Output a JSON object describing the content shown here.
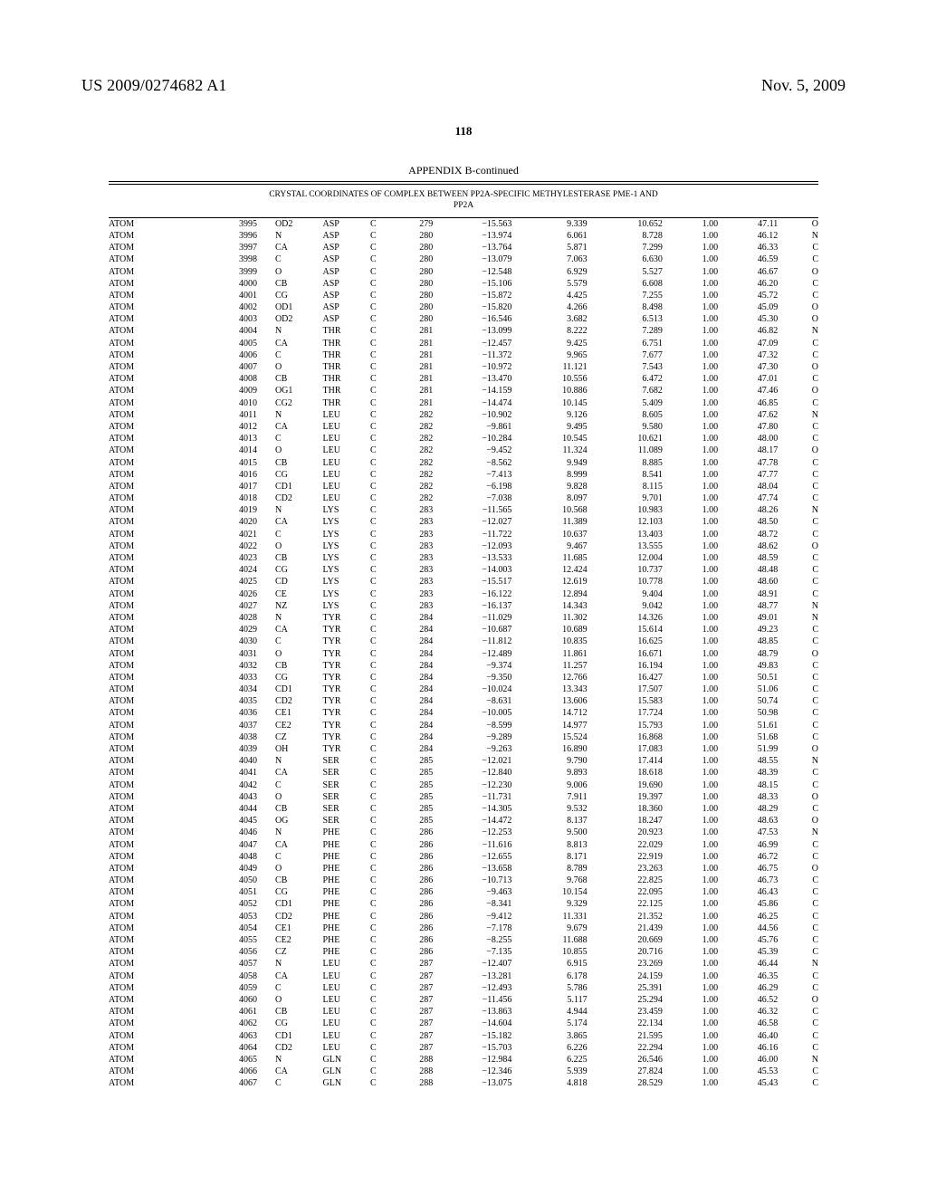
{
  "header": {
    "publication_number": "US 2009/0274682 A1",
    "publication_date": "Nov. 5, 2009"
  },
  "page_number": "118",
  "appendix_title": "APPENDIX B-continued",
  "subtitle_line1": "CRYSTAL COORDINATES OF COMPLEX BETWEEN PP2A-SPECIFIC METHYLESTERASE PME-1 AND",
  "subtitle_line2": "PP2A",
  "columns": [
    "rec",
    "ser",
    "atom",
    "res",
    "chain",
    "seq",
    "x",
    "y",
    "z",
    "occ",
    "b",
    "el"
  ],
  "rows": [
    [
      "ATOM",
      "3995",
      "OD2",
      "ASP",
      "C",
      "279",
      "−15.563",
      "9.339",
      "10.652",
      "1.00",
      "47.11",
      "O"
    ],
    [
      "ATOM",
      "3996",
      "N",
      "ASP",
      "C",
      "280",
      "−13.974",
      "6.061",
      "8.728",
      "1.00",
      "46.12",
      "N"
    ],
    [
      "ATOM",
      "3997",
      "CA",
      "ASP",
      "C",
      "280",
      "−13.764",
      "5.871",
      "7.299",
      "1.00",
      "46.33",
      "C"
    ],
    [
      "ATOM",
      "3998",
      "C",
      "ASP",
      "C",
      "280",
      "−13.079",
      "7.063",
      "6.630",
      "1.00",
      "46.59",
      "C"
    ],
    [
      "ATOM",
      "3999",
      "O",
      "ASP",
      "C",
      "280",
      "−12.548",
      "6.929",
      "5.527",
      "1.00",
      "46.67",
      "O"
    ],
    [
      "ATOM",
      "4000",
      "CB",
      "ASP",
      "C",
      "280",
      "−15.106",
      "5.579",
      "6.608",
      "1.00",
      "46.20",
      "C"
    ],
    [
      "ATOM",
      "4001",
      "CG",
      "ASP",
      "C",
      "280",
      "−15.872",
      "4.425",
      "7.255",
      "1.00",
      "45.72",
      "C"
    ],
    [
      "ATOM",
      "4002",
      "OD1",
      "ASP",
      "C",
      "280",
      "−15.820",
      "4.266",
      "8.498",
      "1.00",
      "45.09",
      "O"
    ],
    [
      "ATOM",
      "4003",
      "OD2",
      "ASP",
      "C",
      "280",
      "−16.546",
      "3.682",
      "6.513",
      "1.00",
      "45.30",
      "O"
    ],
    [
      "ATOM",
      "4004",
      "N",
      "THR",
      "C",
      "281",
      "−13.099",
      "8.222",
      "7.289",
      "1.00",
      "46.82",
      "N"
    ],
    [
      "ATOM",
      "4005",
      "CA",
      "THR",
      "C",
      "281",
      "−12.457",
      "9.425",
      "6.751",
      "1.00",
      "47.09",
      "C"
    ],
    [
      "ATOM",
      "4006",
      "C",
      "THR",
      "C",
      "281",
      "−11.372",
      "9.965",
      "7.677",
      "1.00",
      "47.32",
      "C"
    ],
    [
      "ATOM",
      "4007",
      "O",
      "THR",
      "C",
      "281",
      "−10.972",
      "11.121",
      "7.543",
      "1.00",
      "47.30",
      "O"
    ],
    [
      "ATOM",
      "4008",
      "CB",
      "THR",
      "C",
      "281",
      "−13.470",
      "10.556",
      "6.472",
      "1.00",
      "47.01",
      "C"
    ],
    [
      "ATOM",
      "4009",
      "OG1",
      "THR",
      "C",
      "281",
      "−14.159",
      "10.886",
      "7.682",
      "1.00",
      "47.46",
      "O"
    ],
    [
      "ATOM",
      "4010",
      "CG2",
      "THR",
      "C",
      "281",
      "−14.474",
      "10.145",
      "5.409",
      "1.00",
      "46.85",
      "C"
    ],
    [
      "ATOM",
      "4011",
      "N",
      "LEU",
      "C",
      "282",
      "−10.902",
      "9.126",
      "8.605",
      "1.00",
      "47.62",
      "N"
    ],
    [
      "ATOM",
      "4012",
      "CA",
      "LEU",
      "C",
      "282",
      "−9.861",
      "9.495",
      "9.580",
      "1.00",
      "47.80",
      "C"
    ],
    [
      "ATOM",
      "4013",
      "C",
      "LEU",
      "C",
      "282",
      "−10.284",
      "10.545",
      "10.621",
      "1.00",
      "48.00",
      "C"
    ],
    [
      "ATOM",
      "4014",
      "O",
      "LEU",
      "C",
      "282",
      "−9.452",
      "11.324",
      "11.089",
      "1.00",
      "48.17",
      "O"
    ],
    [
      "ATOM",
      "4015",
      "CB",
      "LEU",
      "C",
      "282",
      "−8.562",
      "9.949",
      "8.885",
      "1.00",
      "47.78",
      "C"
    ],
    [
      "ATOM",
      "4016",
      "CG",
      "LEU",
      "C",
      "282",
      "−7.413",
      "8.999",
      "8.541",
      "1.00",
      "47.77",
      "C"
    ],
    [
      "ATOM",
      "4017",
      "CD1",
      "LEU",
      "C",
      "282",
      "−6.198",
      "9.828",
      "8.115",
      "1.00",
      "48.04",
      "C"
    ],
    [
      "ATOM",
      "4018",
      "CD2",
      "LEU",
      "C",
      "282",
      "−7.038",
      "8.097",
      "9.701",
      "1.00",
      "47.74",
      "C"
    ],
    [
      "ATOM",
      "4019",
      "N",
      "LYS",
      "C",
      "283",
      "−11.565",
      "10.568",
      "10.983",
      "1.00",
      "48.26",
      "N"
    ],
    [
      "ATOM",
      "4020",
      "CA",
      "LYS",
      "C",
      "283",
      "−12.027",
      "11.389",
      "12.103",
      "1.00",
      "48.50",
      "C"
    ],
    [
      "ATOM",
      "4021",
      "C",
      "LYS",
      "C",
      "283",
      "−11.722",
      "10.637",
      "13.403",
      "1.00",
      "48.72",
      "C"
    ],
    [
      "ATOM",
      "4022",
      "O",
      "LYS",
      "C",
      "283",
      "−12.093",
      "9.467",
      "13.555",
      "1.00",
      "48.62",
      "O"
    ],
    [
      "ATOM",
      "4023",
      "CB",
      "LYS",
      "C",
      "283",
      "−13.533",
      "11.685",
      "12.004",
      "1.00",
      "48.59",
      "C"
    ],
    [
      "ATOM",
      "4024",
      "CG",
      "LYS",
      "C",
      "283",
      "−14.003",
      "12.424",
      "10.737",
      "1.00",
      "48.48",
      "C"
    ],
    [
      "ATOM",
      "4025",
      "CD",
      "LYS",
      "C",
      "283",
      "−15.517",
      "12.619",
      "10.778",
      "1.00",
      "48.60",
      "C"
    ],
    [
      "ATOM",
      "4026",
      "CE",
      "LYS",
      "C",
      "283",
      "−16.122",
      "12.894",
      "9.404",
      "1.00",
      "48.91",
      "C"
    ],
    [
      "ATOM",
      "4027",
      "NZ",
      "LYS",
      "C",
      "283",
      "−16.137",
      "14.343",
      "9.042",
      "1.00",
      "48.77",
      "N"
    ],
    [
      "ATOM",
      "4028",
      "N",
      "TYR",
      "C",
      "284",
      "−11.029",
      "11.302",
      "14.326",
      "1.00",
      "49.01",
      "N"
    ],
    [
      "ATOM",
      "4029",
      "CA",
      "TYR",
      "C",
      "284",
      "−10.687",
      "10.689",
      "15.614",
      "1.00",
      "49.23",
      "C"
    ],
    [
      "ATOM",
      "4030",
      "C",
      "TYR",
      "C",
      "284",
      "−11.812",
      "10.835",
      "16.625",
      "1.00",
      "48.85",
      "C"
    ],
    [
      "ATOM",
      "4031",
      "O",
      "TYR",
      "C",
      "284",
      "−12.489",
      "11.861",
      "16.671",
      "1.00",
      "48.79",
      "O"
    ],
    [
      "ATOM",
      "4032",
      "CB",
      "TYR",
      "C",
      "284",
      "−9.374",
      "11.257",
      "16.194",
      "1.00",
      "49.83",
      "C"
    ],
    [
      "ATOM",
      "4033",
      "CG",
      "TYR",
      "C",
      "284",
      "−9.350",
      "12.766",
      "16.427",
      "1.00",
      "50.51",
      "C"
    ],
    [
      "ATOM",
      "4034",
      "CD1",
      "TYR",
      "C",
      "284",
      "−10.024",
      "13.343",
      "17.507",
      "1.00",
      "51.06",
      "C"
    ],
    [
      "ATOM",
      "4035",
      "CD2",
      "TYR",
      "C",
      "284",
      "−8.631",
      "13.606",
      "15.583",
      "1.00",
      "50.74",
      "C"
    ],
    [
      "ATOM",
      "4036",
      "CE1",
      "TYR",
      "C",
      "284",
      "−10.005",
      "14.712",
      "17.724",
      "1.00",
      "50.98",
      "C"
    ],
    [
      "ATOM",
      "4037",
      "CE2",
      "TYR",
      "C",
      "284",
      "−8.599",
      "14.977",
      "15.793",
      "1.00",
      "51.61",
      "C"
    ],
    [
      "ATOM",
      "4038",
      "CZ",
      "TYR",
      "C",
      "284",
      "−9.289",
      "15.524",
      "16.868",
      "1.00",
      "51.68",
      "C"
    ],
    [
      "ATOM",
      "4039",
      "OH",
      "TYR",
      "C",
      "284",
      "−9.263",
      "16.890",
      "17.083",
      "1.00",
      "51.99",
      "O"
    ],
    [
      "ATOM",
      "4040",
      "N",
      "SER",
      "C",
      "285",
      "−12.021",
      "9.790",
      "17.414",
      "1.00",
      "48.55",
      "N"
    ],
    [
      "ATOM",
      "4041",
      "CA",
      "SER",
      "C",
      "285",
      "−12.840",
      "9.893",
      "18.618",
      "1.00",
      "48.39",
      "C"
    ],
    [
      "ATOM",
      "4042",
      "C",
      "SER",
      "C",
      "285",
      "−12.230",
      "9.006",
      "19.690",
      "1.00",
      "48.15",
      "C"
    ],
    [
      "ATOM",
      "4043",
      "O",
      "SER",
      "C",
      "285",
      "−11.731",
      "7.911",
      "19.397",
      "1.00",
      "48.33",
      "O"
    ],
    [
      "ATOM",
      "4044",
      "CB",
      "SER",
      "C",
      "285",
      "−14.305",
      "9.532",
      "18.360",
      "1.00",
      "48.29",
      "C"
    ],
    [
      "ATOM",
      "4045",
      "OG",
      "SER",
      "C",
      "285",
      "−14.472",
      "8.137",
      "18.247",
      "1.00",
      "48.63",
      "O"
    ],
    [
      "ATOM",
      "4046",
      "N",
      "PHE",
      "C",
      "286",
      "−12.253",
      "9.500",
      "20.923",
      "1.00",
      "47.53",
      "N"
    ],
    [
      "ATOM",
      "4047",
      "CA",
      "PHE",
      "C",
      "286",
      "−11.616",
      "8.813",
      "22.029",
      "1.00",
      "46.99",
      "C"
    ],
    [
      "ATOM",
      "4048",
      "C",
      "PHE",
      "C",
      "286",
      "−12.655",
      "8.171",
      "22.919",
      "1.00",
      "46.72",
      "C"
    ],
    [
      "ATOM",
      "4049",
      "O",
      "PHE",
      "C",
      "286",
      "−13.658",
      "8.789",
      "23.263",
      "1.00",
      "46.75",
      "O"
    ],
    [
      "ATOM",
      "4050",
      "CB",
      "PHE",
      "C",
      "286",
      "−10.713",
      "9.768",
      "22.825",
      "1.00",
      "46.73",
      "C"
    ],
    [
      "ATOM",
      "4051",
      "CG",
      "PHE",
      "C",
      "286",
      "−9.463",
      "10.154",
      "22.095",
      "1.00",
      "46.43",
      "C"
    ],
    [
      "ATOM",
      "4052",
      "CD1",
      "PHE",
      "C",
      "286",
      "−8.341",
      "9.329",
      "22.125",
      "1.00",
      "45.86",
      "C"
    ],
    [
      "ATOM",
      "4053",
      "CD2",
      "PHE",
      "C",
      "286",
      "−9.412",
      "11.331",
      "21.352",
      "1.00",
      "46.25",
      "C"
    ],
    [
      "ATOM",
      "4054",
      "CE1",
      "PHE",
      "C",
      "286",
      "−7.178",
      "9.679",
      "21.439",
      "1.00",
      "44.56",
      "C"
    ],
    [
      "ATOM",
      "4055",
      "CE2",
      "PHE",
      "C",
      "286",
      "−8.255",
      "11.688",
      "20.669",
      "1.00",
      "45.76",
      "C"
    ],
    [
      "ATOM",
      "4056",
      "CZ",
      "PHE",
      "C",
      "286",
      "−7.135",
      "10.855",
      "20.716",
      "1.00",
      "45.39",
      "C"
    ],
    [
      "ATOM",
      "4057",
      "N",
      "LEU",
      "C",
      "287",
      "−12.407",
      "6.915",
      "23.269",
      "1.00",
      "46.44",
      "N"
    ],
    [
      "ATOM",
      "4058",
      "CA",
      "LEU",
      "C",
      "287",
      "−13.281",
      "6.178",
      "24.159",
      "1.00",
      "46.35",
      "C"
    ],
    [
      "ATOM",
      "4059",
      "C",
      "LEU",
      "C",
      "287",
      "−12.493",
      "5.786",
      "25.391",
      "1.00",
      "46.29",
      "C"
    ],
    [
      "ATOM",
      "4060",
      "O",
      "LEU",
      "C",
      "287",
      "−11.456",
      "5.117",
      "25.294",
      "1.00",
      "46.52",
      "O"
    ],
    [
      "ATOM",
      "4061",
      "CB",
      "LEU",
      "C",
      "287",
      "−13.863",
      "4.944",
      "23.459",
      "1.00",
      "46.32",
      "C"
    ],
    [
      "ATOM",
      "4062",
      "CG",
      "LEU",
      "C",
      "287",
      "−14.604",
      "5.174",
      "22.134",
      "1.00",
      "46.58",
      "C"
    ],
    [
      "ATOM",
      "4063",
      "CD1",
      "LEU",
      "C",
      "287",
      "−15.182",
      "3.865",
      "21.595",
      "1.00",
      "46.40",
      "C"
    ],
    [
      "ATOM",
      "4064",
      "CD2",
      "LEU",
      "C",
      "287",
      "−15.703",
      "6.226",
      "22.294",
      "1.00",
      "46.16",
      "C"
    ],
    [
      "ATOM",
      "4065",
      "N",
      "GLN",
      "C",
      "288",
      "−12.984",
      "6.225",
      "26.546",
      "1.00",
      "46.00",
      "N"
    ],
    [
      "ATOM",
      "4066",
      "CA",
      "GLN",
      "C",
      "288",
      "−12.346",
      "5.939",
      "27.824",
      "1.00",
      "45.53",
      "C"
    ],
    [
      "ATOM",
      "4067",
      "C",
      "GLN",
      "C",
      "288",
      "−13.075",
      "4.818",
      "28.529",
      "1.00",
      "45.43",
      "C"
    ]
  ]
}
